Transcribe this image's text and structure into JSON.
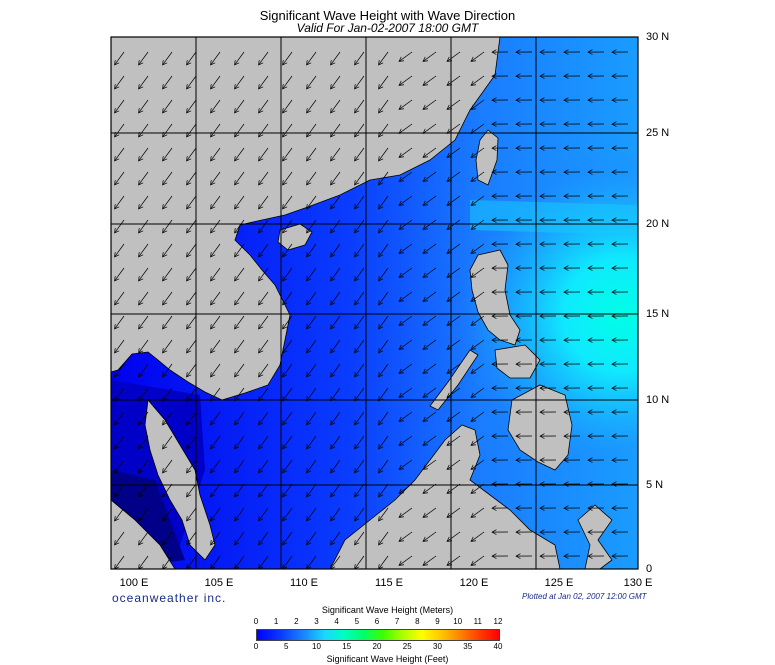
{
  "title": "Significant Wave Height with Wave Direction",
  "subtitle": "Valid For Jan-02-2007 18:00 GMT",
  "lat_labels": [
    "30 N",
    "25 N",
    "20 N",
    "15 N",
    "10 N",
    "5 N",
    "0"
  ],
  "lon_labels": [
    "100 E",
    "105 E",
    "110 E",
    "115 E",
    "120 E",
    "125 E",
    "130 E"
  ],
  "brand": "oceanweather inc.",
  "plotted": "Plotted at Jan 02, 2007 12:00 GMT",
  "legend": {
    "meters_title": "Significant Wave Height (Meters)",
    "feet_title": "Significant Wave Height (Feet)",
    "meters_ticks": [
      "0",
      "1",
      "2",
      "3",
      "4",
      "5",
      "6",
      "7",
      "8",
      "9",
      "10",
      "11",
      "12"
    ],
    "feet_ticks": [
      "0",
      "5",
      "10",
      "15",
      "20",
      "25",
      "30",
      "35",
      "40"
    ]
  },
  "colors": {
    "land": "#c0c0c0",
    "calm": "#0000ff",
    "moderate": "#1a8cff",
    "high": "#18d8ff",
    "very_high": "#00ffc0"
  }
}
